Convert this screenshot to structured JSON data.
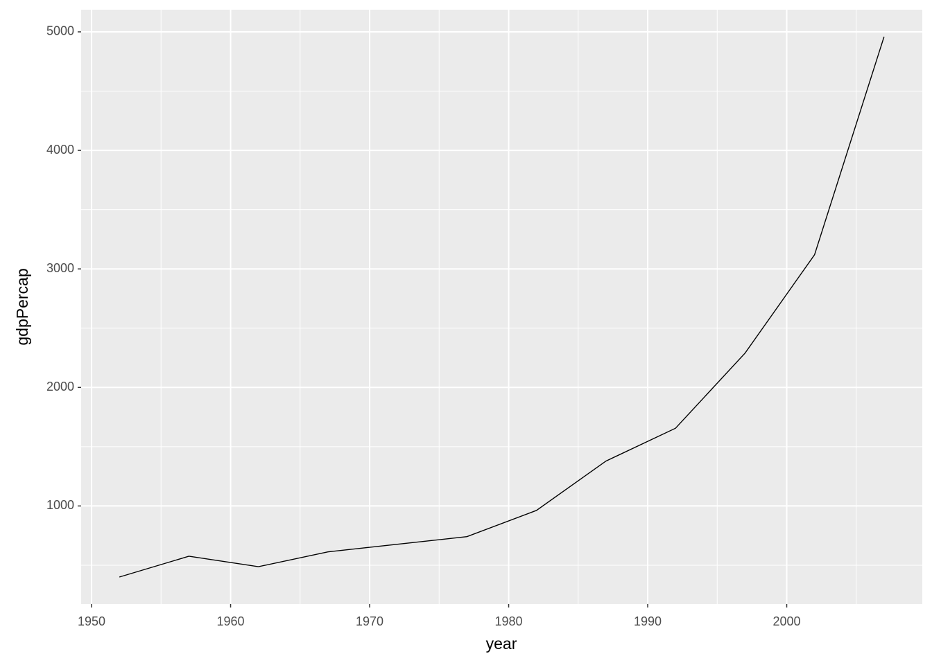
{
  "chart_data": {
    "type": "line",
    "x_label": "year",
    "y_label": "gdpPercap",
    "x": [
      1952,
      1957,
      1962,
      1967,
      1972,
      1977,
      1982,
      1987,
      1992,
      1997,
      2002,
      2007
    ],
    "series": [
      {
        "color": "#000000",
        "values": [
          400.45,
          575.99,
          487.67,
          612.71,
          676.9,
          741.24,
          962.42,
          1378.9,
          1655.78,
          2289.23,
          3119.28,
          4959.11
        ]
      }
    ],
    "xlim": [
      1949.25,
      2009.75
    ],
    "xticks": [
      1950,
      1960,
      1970,
      1980,
      1990,
      2000
    ],
    "xminor": [
      1955,
      1965,
      1975,
      1985,
      1995,
      2005
    ],
    "ylim": [
      172.5,
      5187
    ],
    "yticks": [
      1000,
      2000,
      3000,
      4000,
      5000
    ],
    "yminor": [
      500,
      1500,
      2500,
      3500,
      4500
    ],
    "grid": true,
    "panel_color": "#ebebeb"
  }
}
